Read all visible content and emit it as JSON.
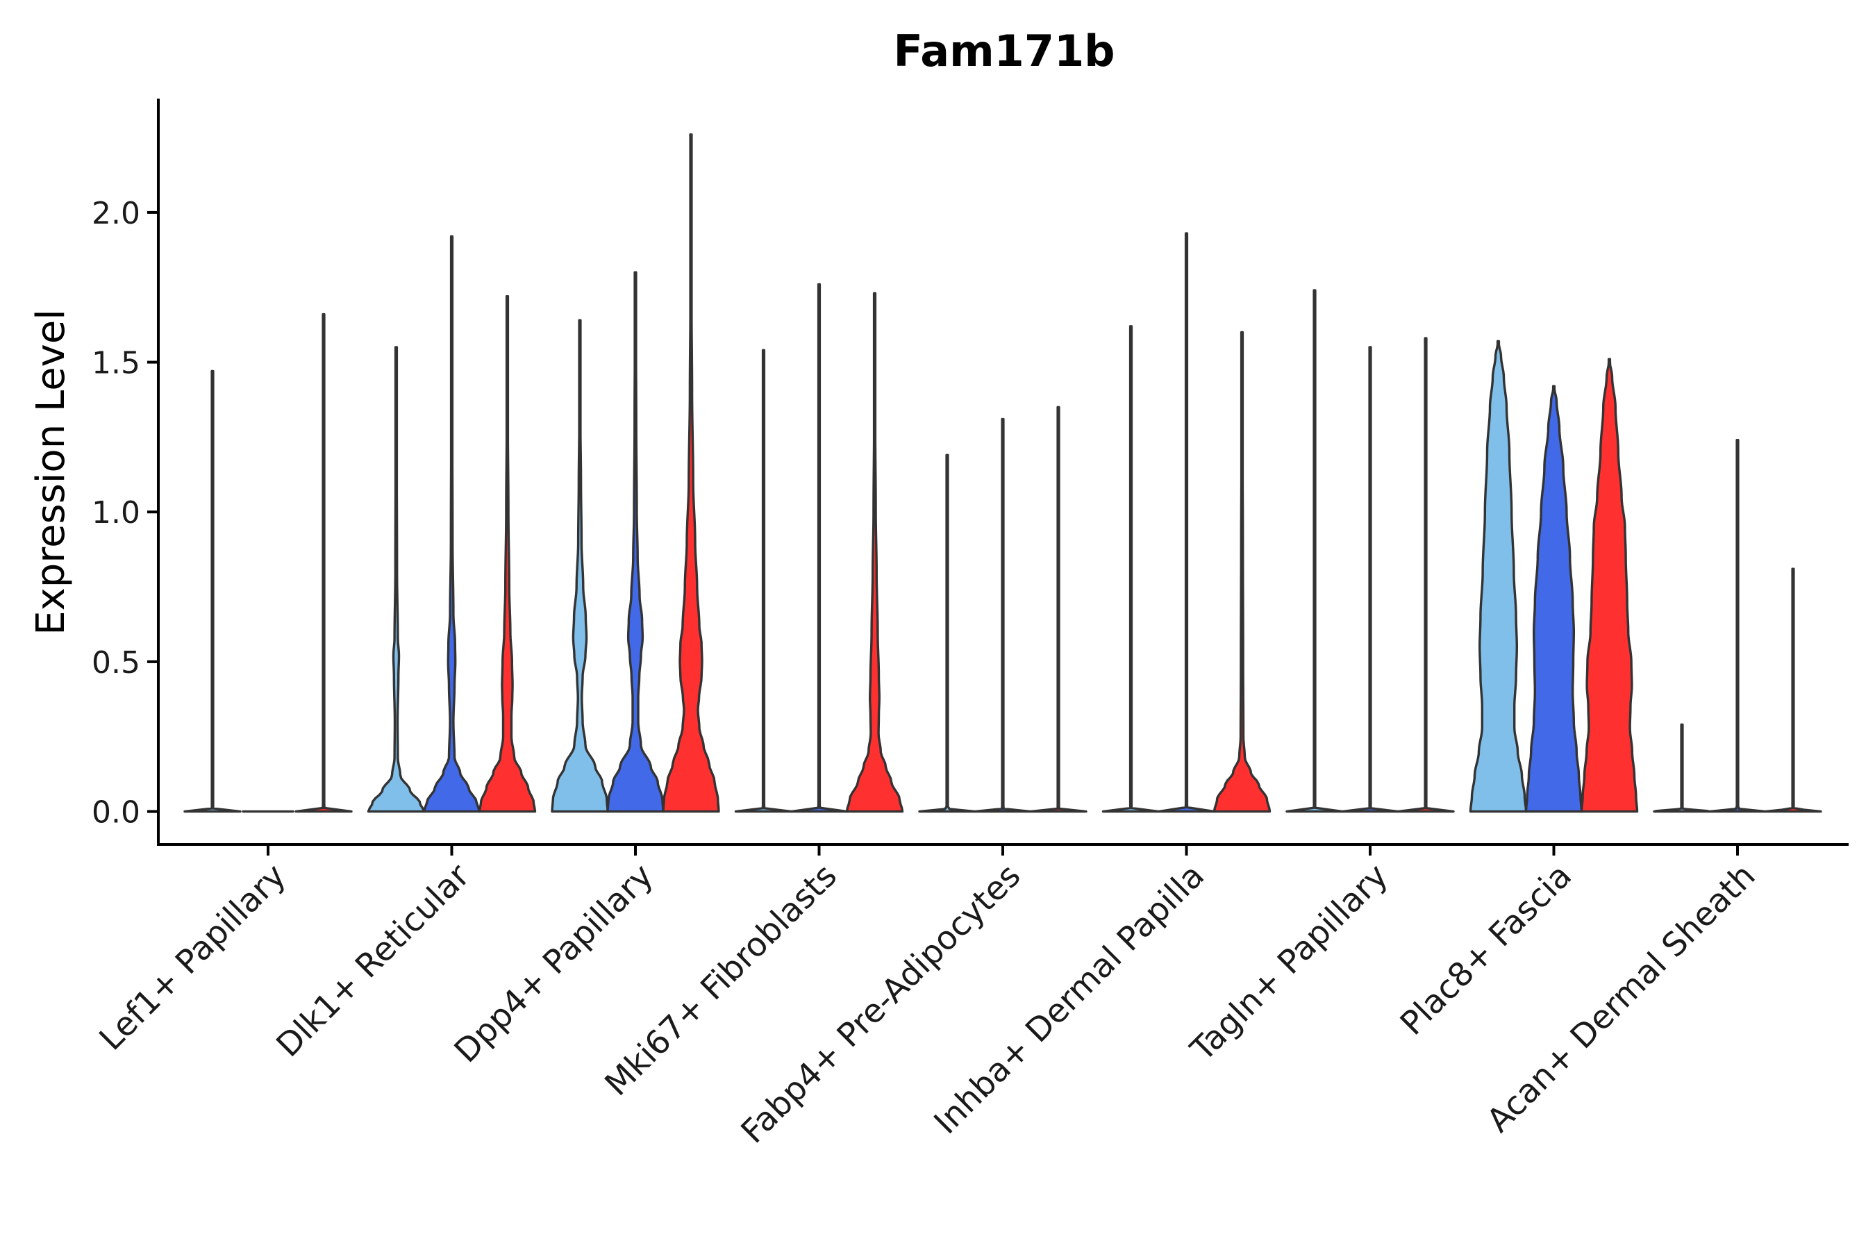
{
  "chart_data": {
    "type": "violin",
    "title": "Fam171b",
    "xlabel": "",
    "ylabel": "Expression Level",
    "ylim": [
      -0.11,
      2.38
    ],
    "yticks": [
      {
        "value": 0.0,
        "label": "0.0"
      },
      {
        "value": 0.5,
        "label": "0.5"
      },
      {
        "value": 1.0,
        "label": "1.0"
      },
      {
        "value": 1.5,
        "label": "1.5"
      },
      {
        "value": 2.0,
        "label": "2.0"
      }
    ],
    "categories": [
      "Lef1+ Papillary",
      "Dlk1+ Reticular",
      "Dpp4+ Papillary",
      "Mki67+ Fibroblasts",
      "Fabp4+ Pre-Adipocytes",
      "Inhba+ Dermal Papilla",
      "Tagln+ Papillary",
      "Plac8+ Fascia",
      "Acan+ Dermal Sheath"
    ],
    "series_colors": [
      "#7fbfea",
      "#4169e8",
      "#ff3030"
    ],
    "violins": [
      {
        "category": 0,
        "series": 0,
        "max": 1.47,
        "profile": [
          [
            0,
            1
          ],
          [
            0.01,
            0.02
          ],
          [
            0.03,
            0.01
          ],
          [
            0.06,
            0
          ]
        ]
      },
      {
        "category": 0,
        "series": 1,
        "max": 0.0,
        "profile": [
          [
            0,
            0.9
          ],
          [
            0.01,
            0.02
          ],
          [
            0.03,
            0
          ]
        ]
      },
      {
        "category": 0,
        "series": 2,
        "max": 1.66,
        "profile": [
          [
            0,
            1
          ],
          [
            0.01,
            0.03
          ],
          [
            0.03,
            0.01
          ],
          [
            0.06,
            0
          ]
        ]
      },
      {
        "category": 1,
        "series": 0,
        "max": 1.55,
        "profile": [
          [
            0,
            1
          ],
          [
            0.03,
            0.85
          ],
          [
            0.07,
            0.5
          ],
          [
            0.12,
            0.15
          ],
          [
            0.18,
            0.06
          ],
          [
            0.3,
            0.05
          ],
          [
            0.45,
            0.08
          ],
          [
            0.52,
            0.1
          ],
          [
            0.58,
            0.06
          ],
          [
            0.8,
            0.03
          ],
          [
            1.2,
            0.02
          ]
        ]
      },
      {
        "category": 1,
        "series": 1,
        "max": 1.92,
        "profile": [
          [
            0,
            1
          ],
          [
            0.03,
            0.9
          ],
          [
            0.08,
            0.6
          ],
          [
            0.13,
            0.3
          ],
          [
            0.18,
            0.1
          ],
          [
            0.3,
            0.06
          ],
          [
            0.42,
            0.1
          ],
          [
            0.5,
            0.13
          ],
          [
            0.56,
            0.12
          ],
          [
            0.66,
            0.06
          ],
          [
            0.9,
            0.03
          ],
          [
            1.3,
            0.02
          ]
        ]
      },
      {
        "category": 1,
        "series": 2,
        "max": 1.72,
        "profile": [
          [
            0,
            1
          ],
          [
            0.03,
            0.95
          ],
          [
            0.08,
            0.75
          ],
          [
            0.13,
            0.5
          ],
          [
            0.18,
            0.25
          ],
          [
            0.25,
            0.15
          ],
          [
            0.32,
            0.15
          ],
          [
            0.38,
            0.18
          ],
          [
            0.42,
            0.19
          ],
          [
            0.5,
            0.17
          ],
          [
            0.6,
            0.11
          ],
          [
            0.75,
            0.07
          ],
          [
            1.0,
            0.04
          ],
          [
            1.3,
            0.02
          ]
        ]
      },
      {
        "category": 2,
        "series": 0,
        "max": 1.64,
        "profile": [
          [
            0,
            1
          ],
          [
            0.04,
            0.97
          ],
          [
            0.1,
            0.8
          ],
          [
            0.15,
            0.55
          ],
          [
            0.22,
            0.2
          ],
          [
            0.3,
            0.1
          ],
          [
            0.38,
            0.07
          ],
          [
            0.45,
            0.1
          ],
          [
            0.52,
            0.2
          ],
          [
            0.58,
            0.24
          ],
          [
            0.65,
            0.21
          ],
          [
            0.75,
            0.12
          ],
          [
            0.9,
            0.06
          ],
          [
            1.1,
            0.04
          ],
          [
            1.3,
            0.02
          ]
        ]
      },
      {
        "category": 2,
        "series": 1,
        "max": 1.8,
        "profile": [
          [
            0,
            1
          ],
          [
            0.04,
            0.97
          ],
          [
            0.1,
            0.8
          ],
          [
            0.15,
            0.55
          ],
          [
            0.22,
            0.2
          ],
          [
            0.3,
            0.1
          ],
          [
            0.38,
            0.1
          ],
          [
            0.45,
            0.14
          ],
          [
            0.52,
            0.2
          ],
          [
            0.58,
            0.26
          ],
          [
            0.64,
            0.24
          ],
          [
            0.72,
            0.15
          ],
          [
            0.85,
            0.08
          ],
          [
            1.0,
            0.05
          ],
          [
            1.3,
            0.03
          ]
        ]
      },
      {
        "category": 2,
        "series": 2,
        "max": 2.26,
        "profile": [
          [
            0,
            1
          ],
          [
            0.04,
            0.97
          ],
          [
            0.1,
            0.85
          ],
          [
            0.16,
            0.65
          ],
          [
            0.22,
            0.45
          ],
          [
            0.28,
            0.3
          ],
          [
            0.34,
            0.25
          ],
          [
            0.38,
            0.29
          ],
          [
            0.45,
            0.38
          ],
          [
            0.5,
            0.4
          ],
          [
            0.56,
            0.38
          ],
          [
            0.62,
            0.3
          ],
          [
            0.75,
            0.22
          ],
          [
            0.9,
            0.15
          ],
          [
            1.1,
            0.08
          ],
          [
            1.4,
            0.04
          ],
          [
            1.7,
            0.02
          ]
        ]
      },
      {
        "category": 3,
        "series": 0,
        "max": 1.54,
        "profile": [
          [
            0,
            1
          ],
          [
            0.01,
            0.03
          ],
          [
            0.04,
            0.01
          ],
          [
            0.08,
            0
          ]
        ]
      },
      {
        "category": 3,
        "series": 1,
        "max": 1.76,
        "profile": [
          [
            0,
            1
          ],
          [
            0.01,
            0.03
          ],
          [
            0.04,
            0.01
          ],
          [
            0.08,
            0
          ]
        ]
      },
      {
        "category": 3,
        "series": 2,
        "max": 1.73,
        "profile": [
          [
            0,
            1
          ],
          [
            0.04,
            0.9
          ],
          [
            0.1,
            0.6
          ],
          [
            0.15,
            0.4
          ],
          [
            0.2,
            0.22
          ],
          [
            0.26,
            0.14
          ],
          [
            0.32,
            0.15
          ],
          [
            0.38,
            0.17
          ],
          [
            0.45,
            0.15
          ],
          [
            0.6,
            0.11
          ],
          [
            0.8,
            0.07
          ],
          [
            1.0,
            0.04
          ],
          [
            1.3,
            0.02
          ]
        ]
      },
      {
        "category": 4,
        "series": 0,
        "max": 1.19,
        "profile": [
          [
            0,
            1
          ],
          [
            0.01,
            0.02
          ],
          [
            0.03,
            0
          ]
        ]
      },
      {
        "category": 4,
        "series": 1,
        "max": 1.31,
        "profile": [
          [
            0,
            1
          ],
          [
            0.01,
            0.02
          ],
          [
            0.03,
            0
          ]
        ]
      },
      {
        "category": 4,
        "series": 2,
        "max": 1.35,
        "profile": [
          [
            0,
            1
          ],
          [
            0.01,
            0.02
          ],
          [
            0.03,
            0
          ]
        ]
      },
      {
        "category": 5,
        "series": 0,
        "max": 1.62,
        "profile": [
          [
            0,
            1
          ],
          [
            0.01,
            0.02
          ],
          [
            0.03,
            0
          ]
        ]
      },
      {
        "category": 5,
        "series": 1,
        "max": 1.93,
        "profile": [
          [
            0,
            1
          ],
          [
            0.01,
            0.03
          ],
          [
            0.03,
            0.01
          ],
          [
            0.06,
            0
          ]
        ]
      },
      {
        "category": 5,
        "series": 2,
        "max": 1.6,
        "profile": [
          [
            0,
            1
          ],
          [
            0.04,
            0.9
          ],
          [
            0.09,
            0.6
          ],
          [
            0.13,
            0.32
          ],
          [
            0.18,
            0.1
          ],
          [
            0.25,
            0.05
          ],
          [
            0.5,
            0.04
          ],
          [
            0.9,
            0.03
          ],
          [
            1.2,
            0.02
          ]
        ]
      },
      {
        "category": 6,
        "series": 0,
        "max": 1.74,
        "profile": [
          [
            0,
            1
          ],
          [
            0.01,
            0.02
          ],
          [
            0.03,
            0
          ]
        ]
      },
      {
        "category": 6,
        "series": 1,
        "max": 1.55,
        "profile": [
          [
            0,
            1
          ],
          [
            0.01,
            0.02
          ],
          [
            0.03,
            0
          ]
        ]
      },
      {
        "category": 6,
        "series": 2,
        "max": 1.58,
        "profile": [
          [
            0,
            1
          ],
          [
            0.01,
            0.02
          ],
          [
            0.03,
            0
          ]
        ]
      },
      {
        "category": 7,
        "series": 0,
        "max": 1.57,
        "profile": [
          [
            0,
            1
          ],
          [
            0.05,
            0.95
          ],
          [
            0.12,
            0.85
          ],
          [
            0.2,
            0.7
          ],
          [
            0.28,
            0.58
          ],
          [
            0.35,
            0.58
          ],
          [
            0.45,
            0.64
          ],
          [
            0.55,
            0.67
          ],
          [
            0.65,
            0.64
          ],
          [
            0.8,
            0.56
          ],
          [
            1.0,
            0.48
          ],
          [
            1.2,
            0.4
          ],
          [
            1.35,
            0.3
          ],
          [
            1.45,
            0.2
          ],
          [
            1.52,
            0.1
          ]
        ]
      },
      {
        "category": 7,
        "series": 1,
        "max": 1.42,
        "profile": [
          [
            0,
            1
          ],
          [
            0.05,
            0.96
          ],
          [
            0.12,
            0.9
          ],
          [
            0.2,
            0.82
          ],
          [
            0.3,
            0.72
          ],
          [
            0.4,
            0.68
          ],
          [
            0.5,
            0.7
          ],
          [
            0.6,
            0.72
          ],
          [
            0.7,
            0.68
          ],
          [
            0.85,
            0.58
          ],
          [
            1.0,
            0.46
          ],
          [
            1.15,
            0.34
          ],
          [
            1.28,
            0.2
          ],
          [
            1.37,
            0.1
          ]
        ]
      },
      {
        "category": 7,
        "series": 2,
        "max": 1.51,
        "profile": [
          [
            0,
            1
          ],
          [
            0.05,
            0.96
          ],
          [
            0.12,
            0.9
          ],
          [
            0.2,
            0.82
          ],
          [
            0.28,
            0.74
          ],
          [
            0.35,
            0.76
          ],
          [
            0.42,
            0.81
          ],
          [
            0.5,
            0.79
          ],
          [
            0.6,
            0.68
          ],
          [
            0.7,
            0.64
          ],
          [
            0.85,
            0.59
          ],
          [
            0.95,
            0.56
          ],
          [
            1.05,
            0.44
          ],
          [
            1.2,
            0.32
          ],
          [
            1.35,
            0.22
          ],
          [
            1.45,
            0.1
          ]
        ]
      },
      {
        "category": 8,
        "series": 0,
        "max": 0.29,
        "profile": [
          [
            0,
            1
          ],
          [
            0.01,
            0.02
          ],
          [
            0.03,
            0
          ]
        ]
      },
      {
        "category": 8,
        "series": 1,
        "max": 1.24,
        "profile": [
          [
            0,
            1
          ],
          [
            0.01,
            0.02
          ],
          [
            0.03,
            0
          ]
        ]
      },
      {
        "category": 8,
        "series": 2,
        "max": 0.81,
        "profile": [
          [
            0,
            1
          ],
          [
            0.01,
            0.02
          ],
          [
            0.03,
            0
          ]
        ]
      }
    ]
  }
}
